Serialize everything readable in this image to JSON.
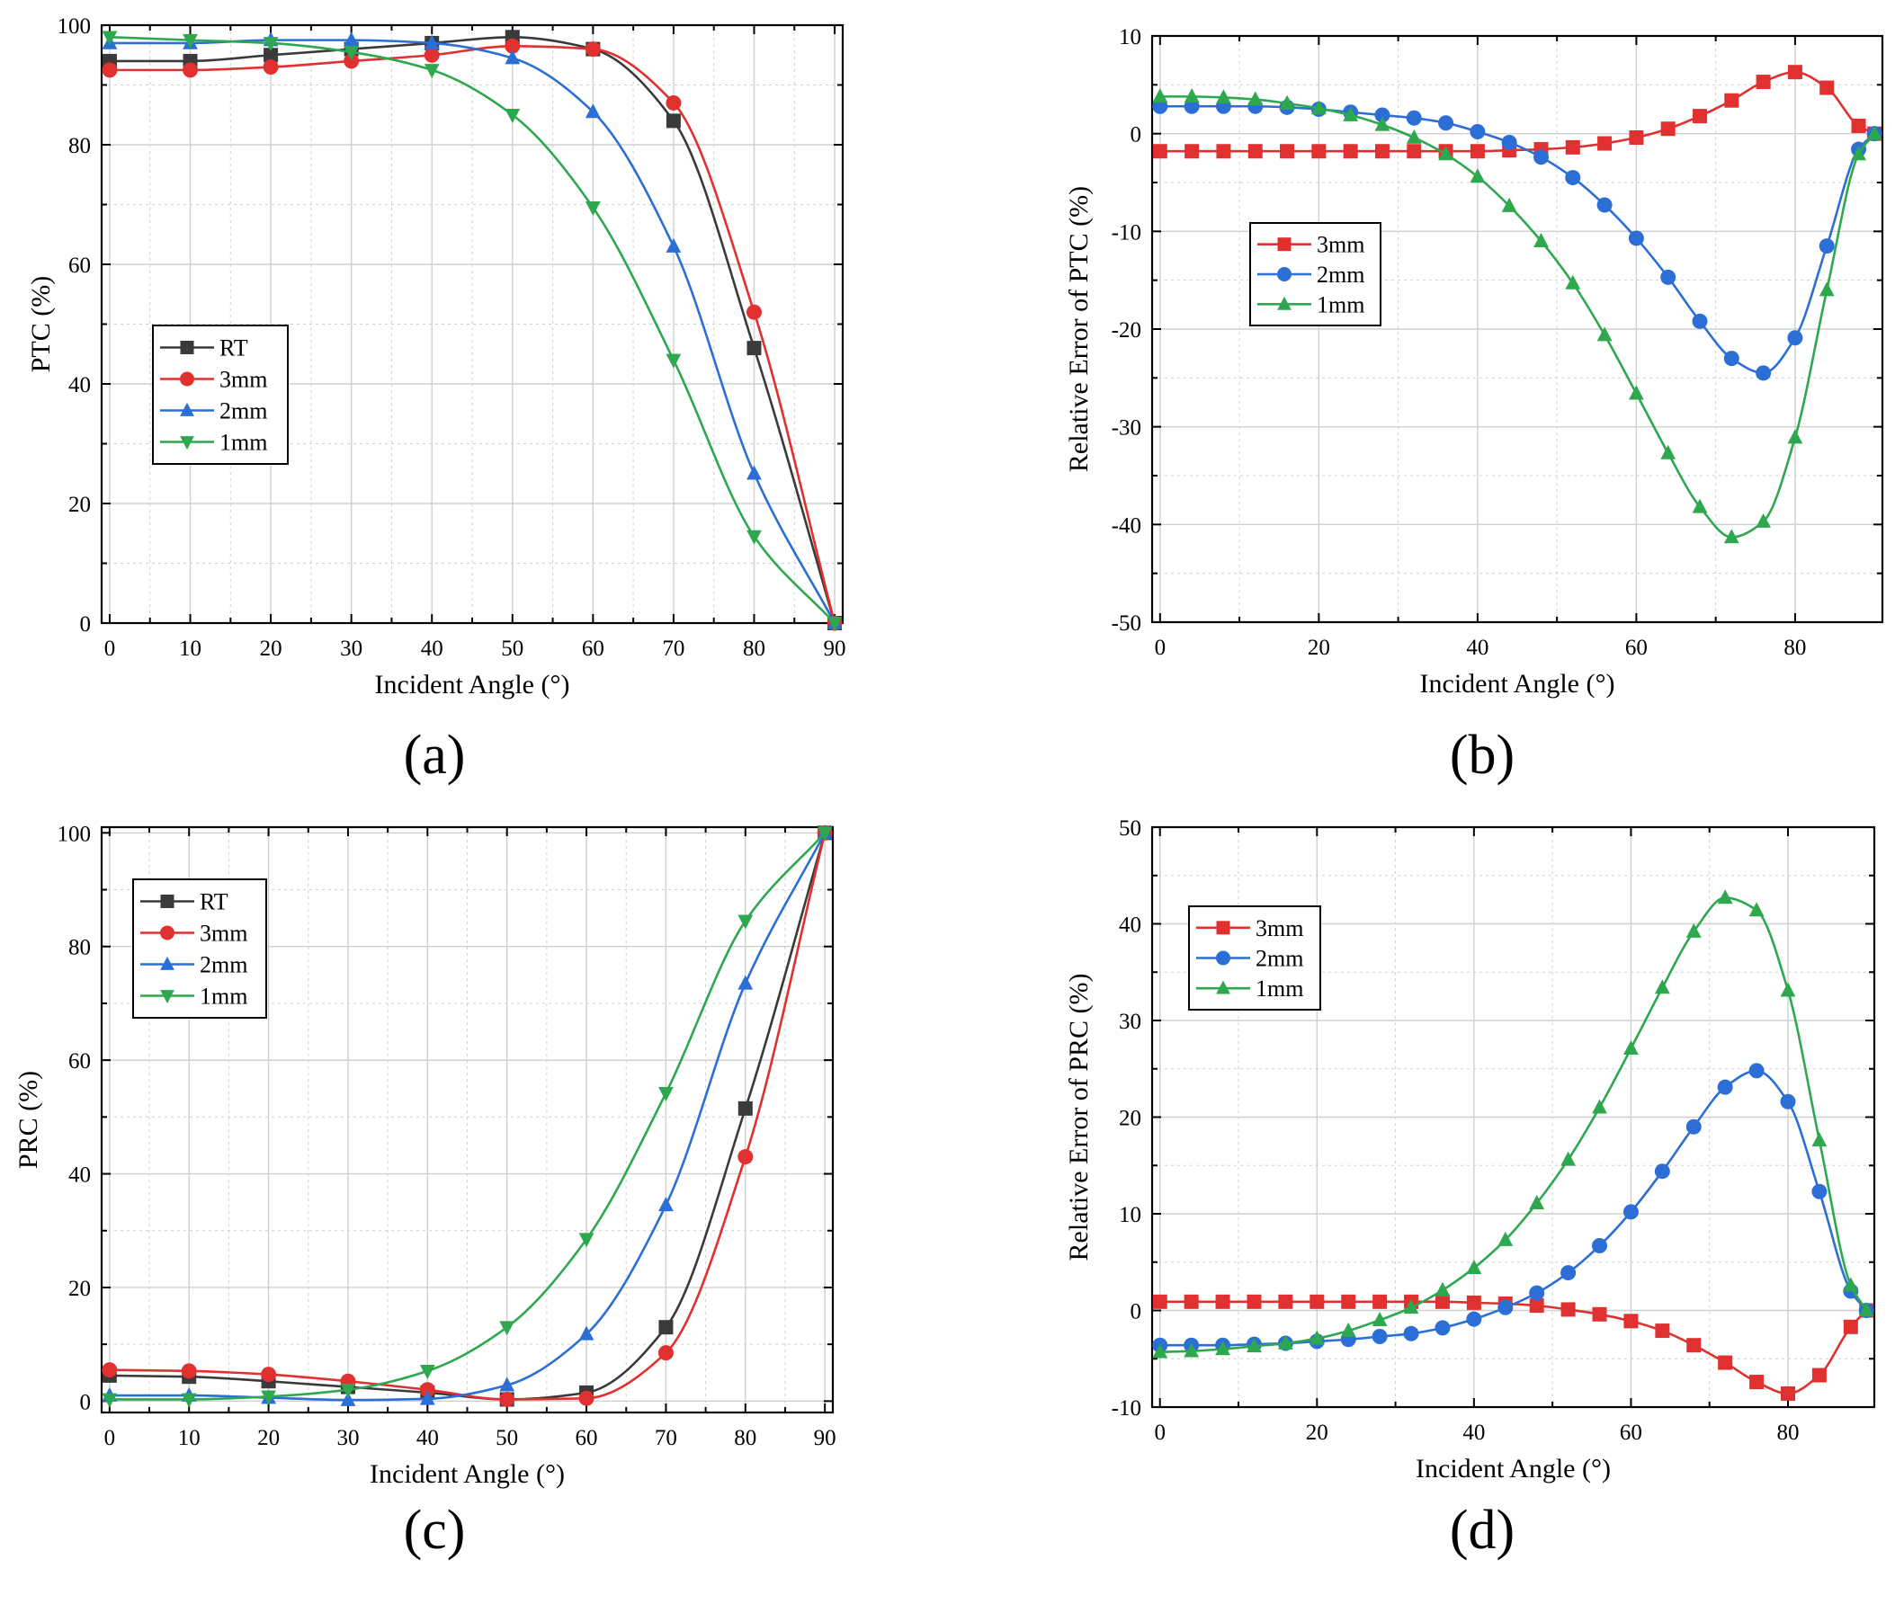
{
  "figure": {
    "colors": {
      "RT": "#3a3a3a",
      "3mm": "#e03030",
      "2mm": "#2b6fd6",
      "1mm": "#2ea84e",
      "grid": "#d0d0d0",
      "axis": "#000000"
    }
  },
  "chart_data": [
    {
      "id": "a",
      "panel_label": "(a)",
      "type": "line",
      "title": "",
      "xlabel": "Incident Angle (°)",
      "ylabel": "PTC (%)",
      "xlim": [
        -1,
        91
      ],
      "ylim": [
        0,
        100
      ],
      "xticks": [
        0,
        10,
        20,
        30,
        40,
        50,
        60,
        70,
        80,
        90
      ],
      "yticks": [
        0,
        20,
        40,
        60,
        80,
        100
      ],
      "legend_position": "middle-left",
      "series": [
        {
          "name": "RT",
          "marker": "square",
          "x": [
            0,
            10,
            20,
            30,
            40,
            50,
            60,
            70,
            80,
            90
          ],
          "values": [
            94,
            94,
            95,
            96,
            97,
            98,
            96,
            84,
            46,
            0
          ]
        },
        {
          "name": "3mm",
          "marker": "circle",
          "x": [
            0,
            10,
            20,
            30,
            40,
            50,
            60,
            70,
            80,
            90
          ],
          "values": [
            92.5,
            92.5,
            93,
            94,
            95,
            96.5,
            96,
            87,
            52,
            0
          ]
        },
        {
          "name": "2mm",
          "marker": "triangle-up",
          "x": [
            0,
            10,
            20,
            30,
            40,
            50,
            60,
            70,
            80,
            90
          ],
          "values": [
            97,
            97,
            97.5,
            97.5,
            97,
            94.5,
            85.5,
            63,
            25,
            0
          ]
        },
        {
          "name": "1mm",
          "marker": "triangle-down",
          "x": [
            0,
            10,
            20,
            30,
            40,
            50,
            60,
            70,
            80,
            90
          ],
          "values": [
            98,
            97.5,
            97,
            95.5,
            92.5,
            85,
            69.5,
            44,
            14.5,
            0
          ]
        }
      ]
    },
    {
      "id": "b",
      "panel_label": "(b)",
      "type": "line",
      "title": "",
      "xlabel": "Incident Angle (°)",
      "ylabel": "Relative Error of PTC (%)",
      "xlim": [
        -1,
        91
      ],
      "ylim": [
        -50,
        10
      ],
      "xticks": [
        0,
        20,
        40,
        60,
        80
      ],
      "yticks": [
        -50,
        -40,
        -30,
        -20,
        -10,
        0,
        10
      ],
      "legend_position": "upper-left",
      "series": [
        {
          "name": "3mm",
          "marker": "square",
          "x": [
            0,
            4,
            8,
            12,
            16,
            20,
            24,
            28,
            32,
            36,
            40,
            44,
            48,
            52,
            56,
            60,
            64,
            68,
            72,
            76,
            80,
            84,
            88,
            90
          ],
          "values": [
            -1.8,
            -1.8,
            -1.8,
            -1.8,
            -1.8,
            -1.8,
            -1.8,
            -1.8,
            -1.8,
            -1.8,
            -1.8,
            -1.7,
            -1.6,
            -1.4,
            -1.0,
            -0.4,
            0.5,
            1.8,
            3.4,
            5.3,
            6.3,
            4.7,
            0.8,
            0
          ]
        },
        {
          "name": "2mm",
          "marker": "circle",
          "x": [
            0,
            4,
            8,
            12,
            16,
            20,
            24,
            28,
            32,
            36,
            40,
            44,
            48,
            52,
            56,
            60,
            64,
            68,
            72,
            76,
            80,
            84,
            88,
            90
          ],
          "values": [
            2.8,
            2.8,
            2.8,
            2.8,
            2.7,
            2.5,
            2.2,
            1.9,
            1.6,
            1.1,
            0.2,
            -0.9,
            -2.4,
            -4.5,
            -7.3,
            -10.7,
            -14.7,
            -19.2,
            -23.0,
            -24.5,
            -20.9,
            -11.5,
            -1.6,
            0
          ]
        },
        {
          "name": "1mm",
          "marker": "triangle-up",
          "x": [
            0,
            4,
            8,
            12,
            16,
            20,
            24,
            28,
            32,
            36,
            40,
            44,
            48,
            52,
            56,
            60,
            64,
            68,
            72,
            76,
            80,
            84,
            88,
            90
          ],
          "values": [
            3.8,
            3.8,
            3.7,
            3.5,
            3.1,
            2.6,
            1.9,
            0.9,
            -0.4,
            -2.1,
            -4.4,
            -7.4,
            -11.0,
            -15.3,
            -20.6,
            -26.6,
            -32.7,
            -38.2,
            -41.3,
            -39.7,
            -31.1,
            -16.0,
            -2.1,
            0
          ]
        }
      ]
    },
    {
      "id": "c",
      "panel_label": "(c)",
      "type": "line",
      "title": "",
      "xlabel": "Incident Angle (°)",
      "ylabel": "PRC (%)",
      "xlim": [
        -1,
        91
      ],
      "ylim": [
        -2,
        101
      ],
      "xticks": [
        0,
        10,
        20,
        30,
        40,
        50,
        60,
        70,
        80,
        90
      ],
      "yticks": [
        0,
        20,
        40,
        60,
        80,
        100
      ],
      "legend_position": "upper-left",
      "series": [
        {
          "name": "RT",
          "marker": "square",
          "x": [
            0,
            10,
            20,
            30,
            40,
            50,
            60,
            70,
            80,
            90
          ],
          "values": [
            4.5,
            4.3,
            3.5,
            2.5,
            1.5,
            0.3,
            1.5,
            13,
            51.5,
            100
          ]
        },
        {
          "name": "3mm",
          "marker": "circle",
          "x": [
            0,
            10,
            20,
            30,
            40,
            50,
            60,
            70,
            80,
            90
          ],
          "values": [
            5.5,
            5.3,
            4.7,
            3.5,
            2.0,
            0.3,
            0.5,
            8.5,
            43,
            100
          ]
        },
        {
          "name": "2mm",
          "marker": "triangle-up",
          "x": [
            0,
            10,
            20,
            30,
            40,
            50,
            60,
            70,
            80,
            90
          ],
          "values": [
            1,
            1,
            0.6,
            0.2,
            0.4,
            2.8,
            11.8,
            34.5,
            73.5,
            100
          ]
        },
        {
          "name": "1mm",
          "marker": "triangle-down",
          "x": [
            0,
            10,
            20,
            30,
            40,
            50,
            60,
            70,
            80,
            90
          ],
          "values": [
            0.3,
            0.3,
            0.8,
            2.0,
            5.3,
            13.0,
            28.5,
            54.2,
            84.5,
            100
          ]
        }
      ]
    },
    {
      "id": "d",
      "panel_label": "(d)",
      "type": "line",
      "title": "",
      "xlabel": "Incident Angle (°)",
      "ylabel": "Relative Error of PRC (%)",
      "xlim": [
        -1,
        91
      ],
      "ylim": [
        -10,
        50
      ],
      "xticks": [
        0,
        20,
        40,
        60,
        80
      ],
      "yticks": [
        -10,
        0,
        10,
        20,
        30,
        40,
        50
      ],
      "legend_position": "upper-left",
      "series": [
        {
          "name": "3mm",
          "marker": "square",
          "x": [
            0,
            4,
            8,
            12,
            16,
            20,
            24,
            28,
            32,
            36,
            40,
            44,
            48,
            52,
            56,
            60,
            64,
            68,
            72,
            76,
            80,
            84,
            88,
            90
          ],
          "values": [
            0.9,
            0.9,
            0.9,
            0.9,
            0.9,
            0.9,
            0.9,
            0.9,
            0.9,
            0.9,
            0.8,
            0.7,
            0.5,
            0.1,
            -0.4,
            -1.1,
            -2.1,
            -3.6,
            -5.4,
            -7.4,
            -8.6,
            -6.7,
            -1.7,
            0
          ]
        },
        {
          "name": "2mm",
          "marker": "circle",
          "x": [
            0,
            4,
            8,
            12,
            16,
            20,
            24,
            28,
            32,
            36,
            40,
            44,
            48,
            52,
            56,
            60,
            64,
            68,
            72,
            76,
            80,
            84,
            88,
            90
          ],
          "values": [
            -3.6,
            -3.6,
            -3.6,
            -3.5,
            -3.4,
            -3.2,
            -3.0,
            -2.7,
            -2.4,
            -1.8,
            -0.9,
            0.3,
            1.8,
            3.9,
            6.7,
            10.2,
            14.4,
            19.0,
            23.1,
            24.8,
            21.6,
            12.3,
            2.0,
            0
          ]
        },
        {
          "name": "1mm",
          "marker": "triangle-up",
          "x": [
            0,
            4,
            8,
            12,
            16,
            20,
            24,
            28,
            32,
            36,
            40,
            44,
            48,
            52,
            56,
            60,
            64,
            68,
            72,
            76,
            80,
            84,
            88,
            90
          ],
          "values": [
            -4.3,
            -4.2,
            -4.0,
            -3.7,
            -3.4,
            -2.9,
            -2.1,
            -1.0,
            0.3,
            2.1,
            4.4,
            7.3,
            11.1,
            15.6,
            21.0,
            27.1,
            33.4,
            39.2,
            42.7,
            41.4,
            33.1,
            17.6,
            2.6,
            0
          ]
        }
      ]
    }
  ]
}
